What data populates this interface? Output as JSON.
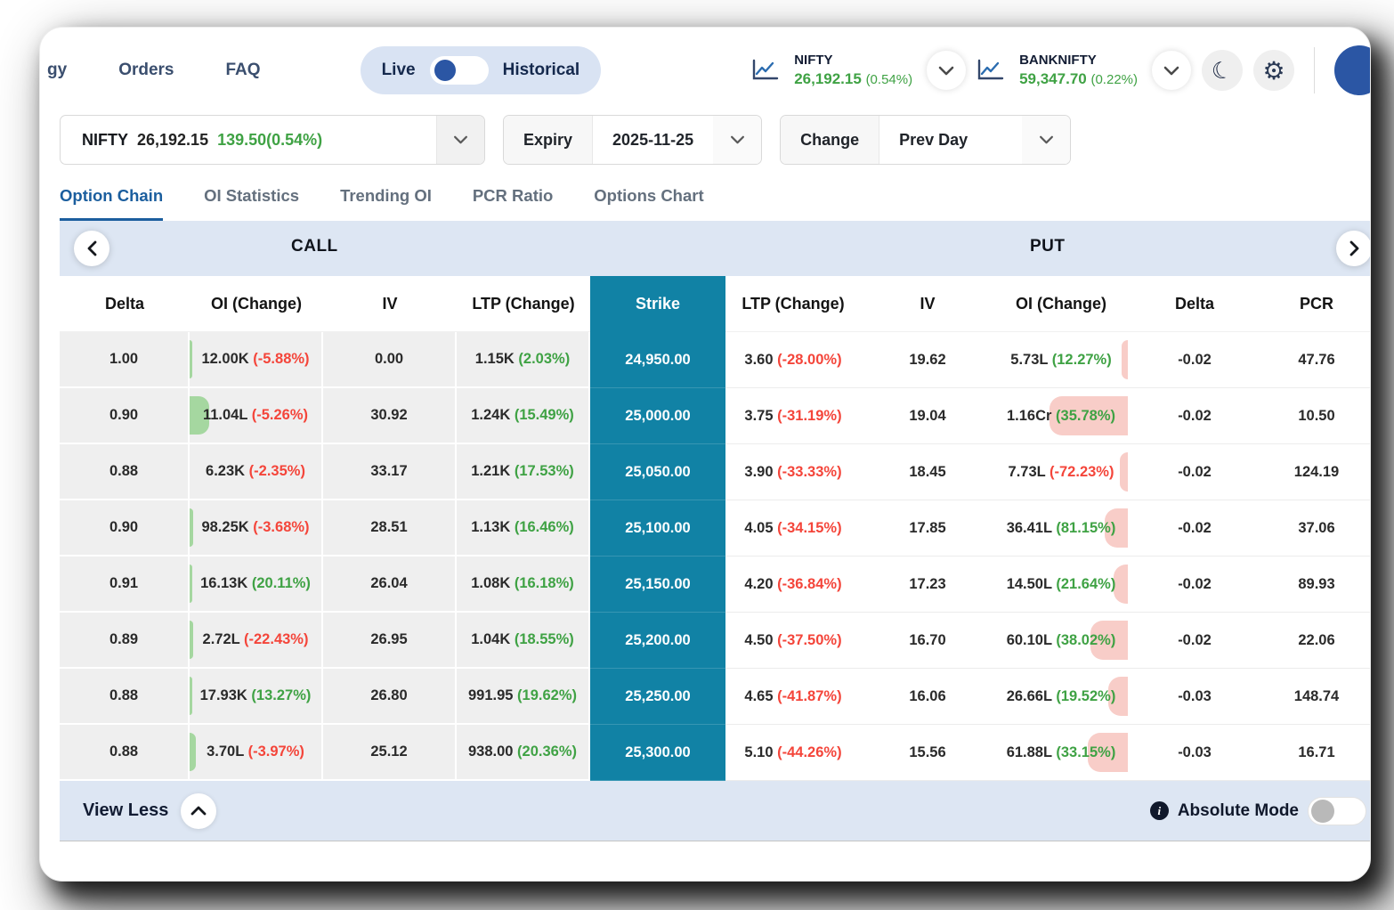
{
  "nav": {
    "menu": [
      "gy",
      "Orders",
      "FAQ"
    ],
    "mode_toggle": {
      "left": "Live",
      "right": "Historical"
    },
    "indices": [
      {
        "name": "NIFTY",
        "price": "26,192.15",
        "pct": "(0.54%)"
      },
      {
        "name": "BANKNIFTY",
        "price": "59,347.70",
        "pct": "(0.22%)"
      }
    ]
  },
  "filters": {
    "symbol": {
      "name": "NIFTY",
      "price": "26,192.15",
      "change": "139.50(0.54%)"
    },
    "expiry_label": "Expiry",
    "expiry_value": "2025-11-25",
    "change_label": "Change",
    "change_value": "Prev Day"
  },
  "tabs": [
    {
      "label": "Option Chain"
    },
    {
      "label": "OI Statistics"
    },
    {
      "label": "Trending OI"
    },
    {
      "label": "PCR Ratio"
    },
    {
      "label": "Options Chart"
    }
  ],
  "table": {
    "call_title": "CALL",
    "put_title": "PUT",
    "headers": {
      "call": [
        "Delta",
        "OI (Change)",
        "IV",
        "LTP (Change)"
      ],
      "strike": "Strike",
      "put": [
        "LTP (Change)",
        "IV",
        "OI (Change)",
        "Delta",
        "PCR"
      ]
    },
    "rows": [
      {
        "call": {
          "delta": "1.00",
          "oi": "12.00K",
          "oi_chg": "(-5.88%)",
          "oi_dir": "down",
          "oi_bar": 3,
          "iv": "0.00",
          "ltp": "1.15K",
          "ltp_chg": "(2.03%)",
          "ltp_dir": "up"
        },
        "strike": "24,950.00",
        "put": {
          "ltp": "3.60",
          "ltp_chg": "(-28.00%)",
          "ltp_dir": "down",
          "iv": "19.62",
          "oi": "5.73L",
          "oi_chg": "(12.27%)",
          "oi_dir": "up",
          "oi_bar": 7,
          "delta": "-0.02",
          "pcr": "47.76"
        }
      },
      {
        "call": {
          "delta": "0.90",
          "oi": "11.04L",
          "oi_chg": "(-5.26%)",
          "oi_dir": "down",
          "oi_bar": 22,
          "iv": "30.92",
          "ltp": "1.24K",
          "ltp_chg": "(15.49%)",
          "ltp_dir": "up"
        },
        "strike": "25,000.00",
        "put": {
          "ltp": "3.75",
          "ltp_chg": "(-31.19%)",
          "ltp_dir": "down",
          "iv": "19.04",
          "oi": "1.16Cr",
          "oi_chg": "(35.78%)",
          "oi_dir": "up",
          "oi_bar": 88,
          "delta": "-0.02",
          "pcr": "10.50"
        }
      },
      {
        "call": {
          "delta": "0.88",
          "oi": "6.23K",
          "oi_chg": "(-2.35%)",
          "oi_dir": "down",
          "oi_bar": 0,
          "iv": "33.17",
          "ltp": "1.21K",
          "ltp_chg": "(17.53%)",
          "ltp_dir": "up"
        },
        "strike": "25,050.00",
        "put": {
          "ltp": "3.90",
          "ltp_chg": "(-33.33%)",
          "ltp_dir": "down",
          "iv": "18.45",
          "oi": "7.73L",
          "oi_chg": "(-72.23%)",
          "oi_dir": "down",
          "oi_bar": 9,
          "delta": "-0.02",
          "pcr": "124.19"
        }
      },
      {
        "call": {
          "delta": "0.90",
          "oi": "98.25K",
          "oi_chg": "(-3.68%)",
          "oi_dir": "down",
          "oi_bar": 4,
          "iv": "28.51",
          "ltp": "1.13K",
          "ltp_chg": "(16.46%)",
          "ltp_dir": "up"
        },
        "strike": "25,100.00",
        "put": {
          "ltp": "4.05",
          "ltp_chg": "(-34.15%)",
          "ltp_dir": "down",
          "iv": "17.85",
          "oi": "36.41L",
          "oi_chg": "(81.15%)",
          "oi_dir": "up",
          "oi_bar": 26,
          "delta": "-0.02",
          "pcr": "37.06"
        }
      },
      {
        "call": {
          "delta": "0.91",
          "oi": "16.13K",
          "oi_chg": "(20.11%)",
          "oi_dir": "up",
          "oi_bar": 3,
          "iv": "26.04",
          "ltp": "1.08K",
          "ltp_chg": "(16.18%)",
          "ltp_dir": "up"
        },
        "strike": "25,150.00",
        "put": {
          "ltp": "4.20",
          "ltp_chg": "(-36.84%)",
          "ltp_dir": "down",
          "iv": "17.23",
          "oi": "14.50L",
          "oi_chg": "(21.64%)",
          "oi_dir": "up",
          "oi_bar": 16,
          "delta": "-0.02",
          "pcr": "89.93"
        }
      },
      {
        "call": {
          "delta": "0.89",
          "oi": "2.72L",
          "oi_chg": "(-22.43%)",
          "oi_dir": "down",
          "oi_bar": 4,
          "iv": "26.95",
          "ltp": "1.04K",
          "ltp_chg": "(18.55%)",
          "ltp_dir": "up"
        },
        "strike": "25,200.00",
        "put": {
          "ltp": "4.50",
          "ltp_chg": "(-37.50%)",
          "ltp_dir": "down",
          "iv": "16.70",
          "oi": "60.10L",
          "oi_chg": "(38.02%)",
          "oi_dir": "up",
          "oi_bar": 42,
          "delta": "-0.02",
          "pcr": "22.06"
        }
      },
      {
        "call": {
          "delta": "0.88",
          "oi": "17.93K",
          "oi_chg": "(13.27%)",
          "oi_dir": "up",
          "oi_bar": 3,
          "iv": "26.80",
          "ltp": "991.95",
          "ltp_chg": "(19.62%)",
          "ltp_dir": "up"
        },
        "strike": "25,250.00",
        "put": {
          "ltp": "4.65",
          "ltp_chg": "(-41.87%)",
          "ltp_dir": "down",
          "iv": "16.06",
          "oi": "26.66L",
          "oi_chg": "(19.52%)",
          "oi_dir": "up",
          "oi_bar": 22,
          "delta": "-0.03",
          "pcr": "148.74"
        }
      },
      {
        "call": {
          "delta": "0.88",
          "oi": "3.70L",
          "oi_chg": "(-3.97%)",
          "oi_dir": "down",
          "oi_bar": 7,
          "iv": "25.12",
          "ltp": "938.00",
          "ltp_chg": "(20.36%)",
          "ltp_dir": "up"
        },
        "strike": "25,300.00",
        "put": {
          "ltp": "5.10",
          "ltp_chg": "(-44.26%)",
          "ltp_dir": "down",
          "iv": "15.56",
          "oi": "61.88L",
          "oi_chg": "(33.15%)",
          "oi_dir": "up",
          "oi_bar": 45,
          "delta": "-0.03",
          "pcr": "16.71"
        }
      }
    ]
  },
  "footer": {
    "view_less": "View Less",
    "absolute_mode": "Absolute Mode"
  },
  "colors": {
    "accent_teal": "#1182a5",
    "positive_green": "#3fa244",
    "negative_red": "#f4453a",
    "band_blue": "#dde6f3",
    "call_row_grey": "#efefef",
    "bar_green": "#a5d7a0",
    "bar_pink": "#f8cdc8",
    "active_tab_blue": "#1b5e9e",
    "toggle_knob_blue": "#2b56a4"
  }
}
